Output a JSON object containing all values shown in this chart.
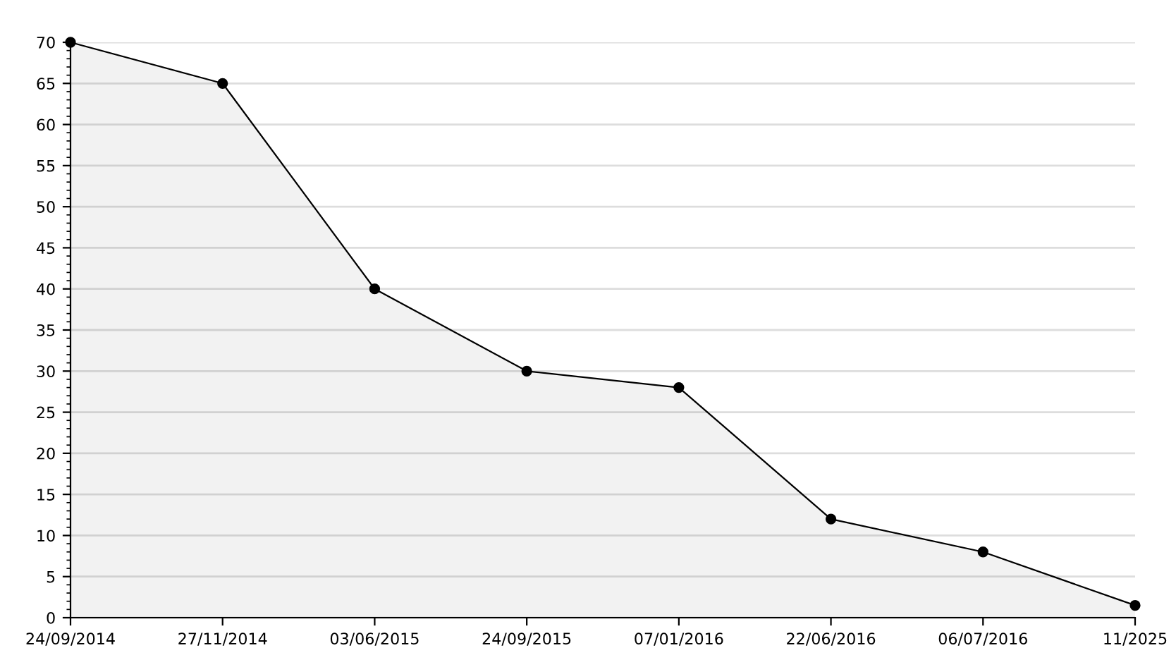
{
  "chart_data": {
    "type": "area",
    "categories": [
      "24/09/2014",
      "27/11/2014",
      "03/06/2015",
      "24/09/2015",
      "07/01/2016",
      "22/06/2016",
      "06/07/2016",
      "11/2025"
    ],
    "series": [
      {
        "color": "#000000",
        "values": [
          70,
          65,
          40,
          30,
          28,
          12,
          8,
          1.5
        ]
      }
    ],
    "ylim": [
      0,
      70
    ],
    "yticks": [
      0,
      5,
      10,
      15,
      20,
      25,
      30,
      35,
      40,
      45,
      50,
      55,
      60,
      65,
      70
    ],
    "grid": "y",
    "marker": "circle",
    "line_style": "solid",
    "legend": false
  }
}
